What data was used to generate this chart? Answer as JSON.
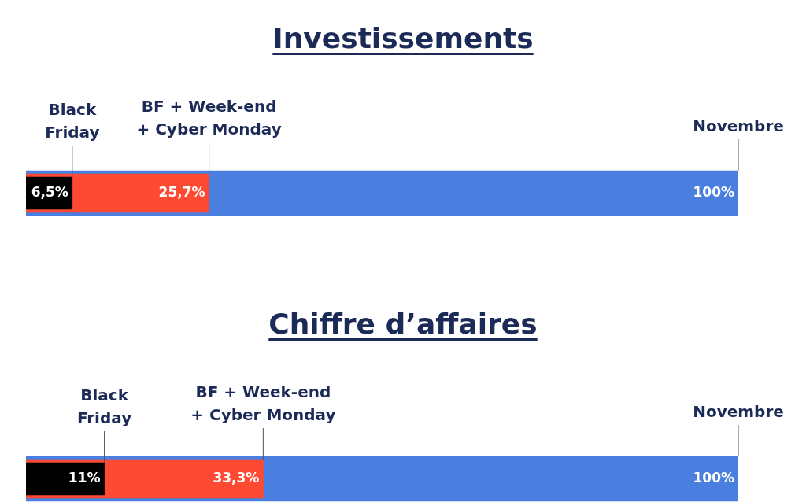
{
  "chart_data": [
    {
      "type": "bar",
      "title": "Investissements",
      "orientation": "horizontal",
      "categories": [
        null
      ],
      "xlim": [
        0,
        100
      ],
      "legend": false,
      "series": [
        {
          "name": "Black Friday",
          "color": "#000000",
          "values": [
            6.5
          ],
          "value_labels": [
            "6,5%"
          ]
        },
        {
          "name": "BF + Week-end + Cyber Monday",
          "color": "#ff4a33",
          "values": [
            25.7
          ],
          "value_labels": [
            "25,7%"
          ]
        },
        {
          "name": "Novembre",
          "color": "#4a7fe0",
          "values": [
            100
          ],
          "value_labels": [
            "100%"
          ]
        }
      ]
    },
    {
      "type": "bar",
      "title": "Chiffre d’affaires",
      "orientation": "horizontal",
      "categories": [
        null
      ],
      "xlim": [
        0,
        100
      ],
      "legend": false,
      "series": [
        {
          "name": "Black Friday",
          "color": "#000000",
          "values": [
            11
          ],
          "value_labels": [
            "11%"
          ]
        },
        {
          "name": "BF + Week-end + Cyber Monday",
          "color": "#ff4a33",
          "values": [
            33.3
          ],
          "value_labels": [
            "33,3%"
          ]
        },
        {
          "name": "Novembre",
          "color": "#4a7fe0",
          "values": [
            100
          ],
          "value_labels": [
            "100%"
          ]
        }
      ]
    }
  ]
}
